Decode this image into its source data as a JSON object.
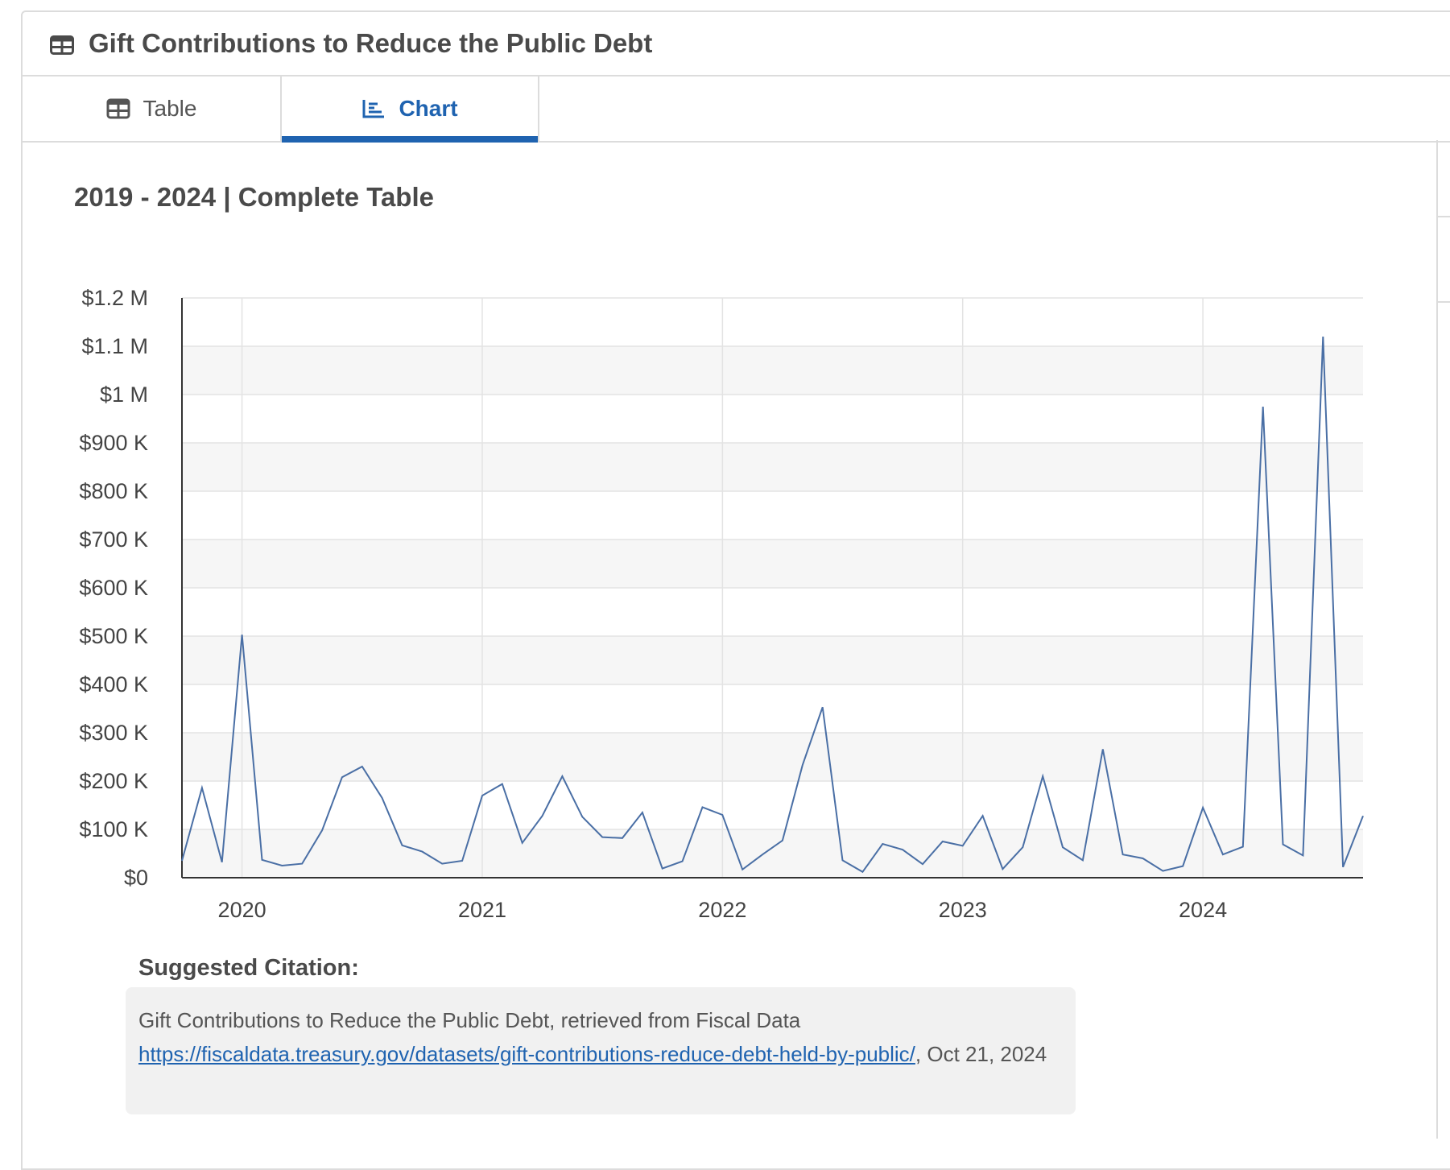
{
  "panel": {
    "title": "Gift Contributions to Reduce the Public Debt",
    "title_icon": "table-icon"
  },
  "tabs": [
    {
      "label": "Table",
      "icon": "table-icon",
      "active": false
    },
    {
      "label": "Chart",
      "icon": "line-chart-icon",
      "active": true
    }
  ],
  "chart_heading": "2019 - 2024 | Complete Table",
  "chart_data": {
    "type": "line",
    "title": "",
    "xlabel": "",
    "ylabel": "",
    "ylim": [
      0,
      1200000
    ],
    "xlim": [
      "2019-10",
      "2024-09"
    ],
    "grid": true,
    "legend": "none",
    "color": "#4a6fa5",
    "y_ticks": [
      {
        "value": 0,
        "label": "$0"
      },
      {
        "value": 100000,
        "label": "$100 K"
      },
      {
        "value": 200000,
        "label": "$200 K"
      },
      {
        "value": 300000,
        "label": "$300 K"
      },
      {
        "value": 400000,
        "label": "$400 K"
      },
      {
        "value": 500000,
        "label": "$500 K"
      },
      {
        "value": 600000,
        "label": "$600 K"
      },
      {
        "value": 700000,
        "label": "$700 K"
      },
      {
        "value": 800000,
        "label": "$800 K"
      },
      {
        "value": 900000,
        "label": "$900 K"
      },
      {
        "value": 1000000,
        "label": "$1 M"
      },
      {
        "value": 1100000,
        "label": "$1.1 M"
      },
      {
        "value": 1200000,
        "label": "$1.2 M"
      }
    ],
    "x_ticks": [
      {
        "value": "2020-01",
        "label": "2020"
      },
      {
        "value": "2021-01",
        "label": "2021"
      },
      {
        "value": "2022-01",
        "label": "2022"
      },
      {
        "value": "2023-01",
        "label": "2023"
      },
      {
        "value": "2024-01",
        "label": "2024"
      }
    ],
    "series": [
      {
        "x": [
          "2019-10",
          "2019-11",
          "2019-12",
          "2020-01",
          "2020-02",
          "2020-03",
          "2020-04",
          "2020-05",
          "2020-06",
          "2020-07",
          "2020-08",
          "2020-09",
          "2020-10",
          "2020-11",
          "2020-12",
          "2021-01",
          "2021-02",
          "2021-03",
          "2021-04",
          "2021-05",
          "2021-06",
          "2021-07",
          "2021-08",
          "2021-09",
          "2021-10",
          "2021-11",
          "2021-12",
          "2022-01",
          "2022-02",
          "2022-03",
          "2022-04",
          "2022-05",
          "2022-06",
          "2022-07",
          "2022-08",
          "2022-09",
          "2022-10",
          "2022-11",
          "2022-12",
          "2023-01",
          "2023-02",
          "2023-03",
          "2023-04",
          "2023-05",
          "2023-06",
          "2023-07",
          "2023-08",
          "2023-09",
          "2023-10",
          "2023-11",
          "2023-12",
          "2024-01",
          "2024-02",
          "2024-03",
          "2024-04",
          "2024-05",
          "2024-06",
          "2024-07",
          "2024-08",
          "2024-09"
        ],
        "values": [
          35000,
          186000,
          32000,
          503000,
          37000,
          25000,
          29000,
          98000,
          208000,
          230000,
          165000,
          67000,
          54000,
          29000,
          35000,
          170000,
          194000,
          72000,
          128000,
          210000,
          126000,
          84000,
          82000,
          135000,
          19000,
          34000,
          146000,
          130000,
          17000,
          48000,
          77000,
          233000,
          353000,
          36000,
          12000,
          70000,
          58000,
          28000,
          75000,
          66000,
          128000,
          18000,
          63000,
          210000,
          63000,
          36000,
          266000,
          48000,
          40000,
          14000,
          24000,
          145000,
          48000,
          64000,
          975000,
          69000,
          46000,
          1120000,
          22000,
          128000
        ]
      }
    ]
  },
  "citation": {
    "label": "Suggested Citation:",
    "text_before": "Gift Contributions to Reduce the Public Debt, retrieved from Fiscal Data ",
    "link": "https://fiscaldata.treasury.gov/datasets/gift-contributions-reduce-debt-held-by-public/",
    "text_after": ", Oct 21, 2024"
  }
}
